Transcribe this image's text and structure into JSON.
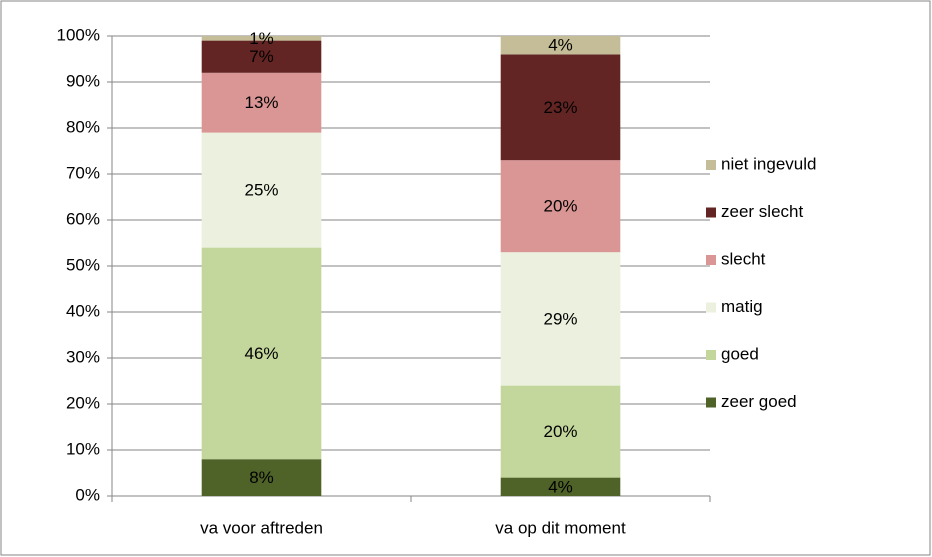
{
  "chart_data": {
    "type": "stacked_bar",
    "categories": [
      "va voor aftreden",
      "va op dit moment"
    ],
    "series": [
      {
        "name": "zeer goed",
        "color": "#4f6228",
        "values": [
          8,
          4
        ],
        "value_labels": [
          "8%",
          "4%"
        ]
      },
      {
        "name": "goed",
        "color": "#c3d69b",
        "values": [
          46,
          20
        ],
        "value_labels": [
          "46%",
          "20%"
        ]
      },
      {
        "name": "matig",
        "color": "#ebf1de",
        "values": [
          25,
          29
        ],
        "value_labels": [
          "25%",
          "29%"
        ]
      },
      {
        "name": "slecht",
        "color": "#d99694",
        "values": [
          13,
          20
        ],
        "value_labels": [
          "13%",
          "20%"
        ]
      },
      {
        "name": "zeer slecht",
        "color": "#632523",
        "values": [
          7,
          23
        ],
        "value_labels": [
          "7%",
          "23%"
        ]
      },
      {
        "name": "niet ingevuld",
        "color": "#c4bd97",
        "values": [
          1,
          4
        ],
        "value_labels": [
          "1%",
          "4%"
        ]
      }
    ],
    "ylim": [
      0,
      100
    ],
    "yticks": [
      {
        "value": 0,
        "label": "0%"
      },
      {
        "value": 10,
        "label": "10%"
      },
      {
        "value": 20,
        "label": "20%"
      },
      {
        "value": 30,
        "label": "30%"
      },
      {
        "value": 40,
        "label": "40%"
      },
      {
        "value": 50,
        "label": "50%"
      },
      {
        "value": 60,
        "label": "60%"
      },
      {
        "value": 70,
        "label": "70%"
      },
      {
        "value": 80,
        "label": "80%"
      },
      {
        "value": 90,
        "label": "90%"
      },
      {
        "value": 100,
        "label": "100%"
      }
    ],
    "grid": true,
    "legend": "right"
  }
}
